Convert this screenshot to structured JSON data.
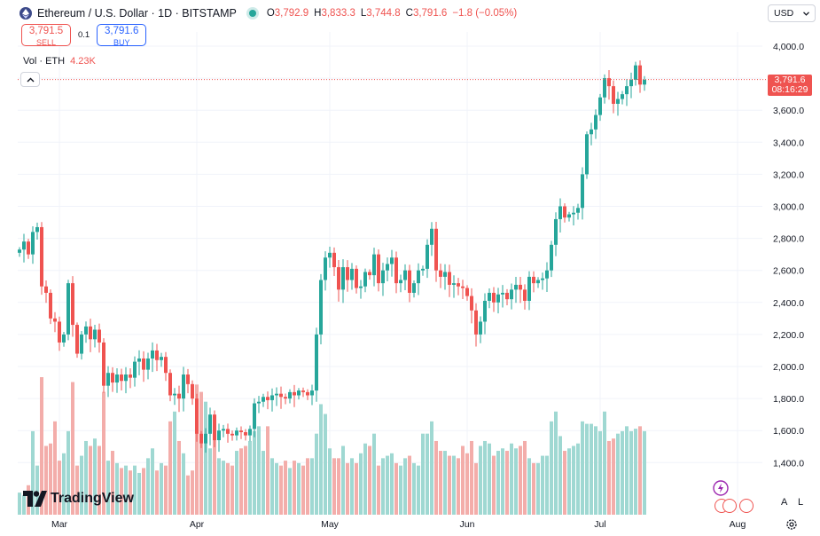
{
  "header": {
    "symbol_title": "Ethereum / U.S. Dollar · 1D · BITSTAMP",
    "ohlc": [
      {
        "key": "O",
        "value": "3,792.9"
      },
      {
        "key": "H",
        "value": "3,833.3"
      },
      {
        "key": "L",
        "value": "3,744.8"
      },
      {
        "key": "C",
        "value": "3,791.6"
      },
      {
        "key": "",
        "value": "−1.8 (−0.05%)"
      }
    ]
  },
  "trade": {
    "sell_price": "3,791.5",
    "sell_label": "SELL",
    "spread": "0.1",
    "buy_price": "3,791.6",
    "buy_label": "BUY"
  },
  "volume_legend": {
    "label": "Vol · ETH",
    "value": "4.23K"
  },
  "currency": {
    "selected": "USD"
  },
  "last_price": {
    "price": "3,791.6",
    "countdown": "08:16:29"
  },
  "brand": {
    "name": "TradingView"
  },
  "controls": {
    "auto_label": "A",
    "log_label": "L"
  },
  "colors": {
    "up": "#26a69a",
    "down": "#ef5350",
    "up_vol": "#9fd8d2",
    "down_vol": "#f3adaa"
  },
  "chart_data": {
    "type": "candlestick",
    "y_ticks": [
      "4,000.0",
      "3,800.0",
      "3,600.0",
      "3,400.0",
      "3,200.0",
      "3,000.0",
      "2,800.0",
      "2,600.0",
      "2,400.0",
      "2,200.0",
      "2,000.0",
      "1,800.0",
      "1,600.0",
      "1,400.0"
    ],
    "y_tick_values": [
      4000,
      3800,
      3600,
      3400,
      3200,
      3000,
      2800,
      2600,
      2400,
      2200,
      2000,
      1800,
      1600,
      1400
    ],
    "x_ticks": [
      "Mar",
      "Apr",
      "May",
      "Jun",
      "Jul",
      "Aug"
    ],
    "x_tick_index": [
      9,
      40,
      70,
      101,
      131,
      162
    ],
    "last_price_value": 3791.6,
    "closes": [
      2730,
      2780,
      2700,
      2840,
      2870,
      2500,
      2460,
      2300,
      2280,
      2150,
      2200,
      2520,
      2260,
      2080,
      2200,
      2250,
      2170,
      2230,
      2150,
      1880,
      1960,
      1900,
      1950,
      1910,
      1950,
      1930,
      2030,
      2050,
      1980,
      2050,
      2100,
      2040,
      2060,
      1960,
      1820,
      1830,
      1800,
      1950,
      1890,
      1800,
      1580,
      1520,
      1580,
      1700,
      1540,
      1600,
      1610,
      1580,
      1570,
      1600,
      1590,
      1570,
      1610,
      1770,
      1780,
      1810,
      1790,
      1820,
      1830,
      1810,
      1800,
      1840,
      1820,
      1850,
      1840,
      1820,
      1850,
      2200,
      2540,
      2680,
      2710,
      2620,
      2480,
      2620,
      2540,
      2610,
      2490,
      2500,
      2590,
      2570,
      2700,
      2520,
      2600,
      2640,
      2680,
      2520,
      2540,
      2600,
      2460,
      2520,
      2600,
      2610,
      2760,
      2860,
      2600,
      2560,
      2590,
      2510,
      2520,
      2500,
      2490,
      2440,
      2350,
      2200,
      2280,
      2410,
      2460,
      2400,
      2450,
      2460,
      2420,
      2480,
      2510,
      2480,
      2410,
      2560,
      2520,
      2540,
      2550,
      2600,
      2760,
      2920,
      3000,
      2930,
      2950,
      2960,
      2990,
      3200,
      3450,
      3480,
      3570,
      3680,
      3800,
      3750,
      3640,
      3670,
      3700,
      3750,
      3790,
      3880,
      3760,
      3790
    ],
    "vol_values": [
      90,
      80,
      120,
      340,
      200,
      560,
      280,
      290,
      380,
      220,
      250,
      340,
      540,
      200,
      240,
      300,
      280,
      310,
      280,
      500,
      220,
      260,
      210,
      190,
      200,
      180,
      200,
      170,
      190,
      230,
      270,
      180,
      210,
      200,
      380,
      420,
      300,
      250,
      160,
      180,
      530,
      500,
      460,
      270,
      310,
      230,
      220,
      210,
      200,
      260,
      270,
      280,
      300,
      340,
      360,
      260,
      360,
      230,
      210,
      200,
      220,
      190,
      220,
      210,
      200,
      230,
      230,
      330,
      450,
      410,
      270,
      230,
      230,
      280,
      210,
      230,
      210,
      250,
      290,
      280,
      330,
      200,
      230,
      240,
      250,
      210,
      200,
      230,
      240,
      210,
      200,
      330,
      330,
      380,
      300,
      260,
      260,
      240,
      240,
      230,
      280,
      250,
      300,
      210,
      280,
      300,
      290,
      240,
      260,
      270,
      260,
      290,
      270,
      280,
      300,
      230,
      210,
      210,
      240,
      240,
      380,
      420,
      320,
      260,
      270,
      280,
      290,
      380,
      370,
      370,
      360,
      340,
      420,
      300,
      310,
      330,
      340,
      360,
      340,
      350,
      360,
      340
    ]
  }
}
